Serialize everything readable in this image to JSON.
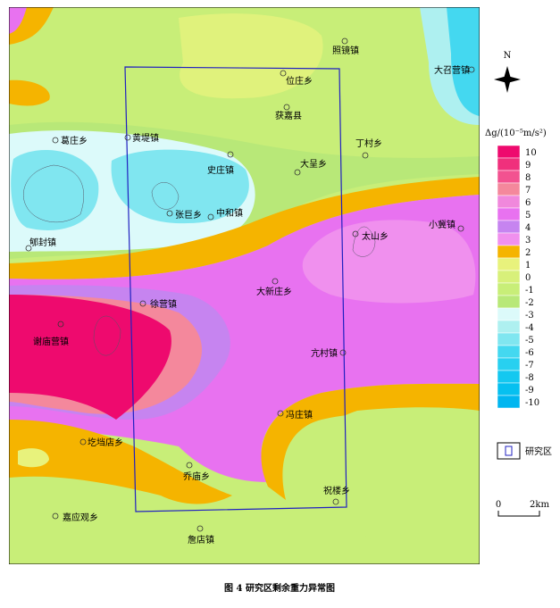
{
  "map": {
    "caption": "图 4   研究区剩余重力异常图",
    "north": "N",
    "scale": {
      "start": "0",
      "end": "2km"
    },
    "study_area": "研究区",
    "legend": {
      "title": "Δg/(10⁻⁵m/s²)",
      "items": [
        {
          "value": 10,
          "color": "#ee0a6e"
        },
        {
          "value": 9,
          "color": "#f0307c"
        },
        {
          "value": 8,
          "color": "#f25290"
        },
        {
          "value": 7,
          "color": "#f4889c"
        },
        {
          "value": 6,
          "color": "#f088dc"
        },
        {
          "value": 5,
          "color": "#e872f0"
        },
        {
          "value": 4,
          "color": "#c684f0"
        },
        {
          "value": 3,
          "color": "#f090ee"
        },
        {
          "value": 2,
          "color": "#f5b400"
        },
        {
          "value": 1,
          "color": "#e8f27c"
        },
        {
          "value": 0,
          "color": "#d8f07a"
        },
        {
          "value": -1,
          "color": "#c8ee78"
        },
        {
          "value": -2,
          "color": "#b8e878"
        },
        {
          "value": -3,
          "color": "#dcfafa"
        },
        {
          "value": -4,
          "color": "#aef0f0"
        },
        {
          "value": -5,
          "color": "#80e6f0"
        },
        {
          "value": -6,
          "color": "#44d8f0"
        },
        {
          "value": -7,
          "color": "#28d0f0"
        },
        {
          "value": -8,
          "color": "#14c8f0"
        },
        {
          "value": -9,
          "color": "#06c0f0"
        },
        {
          "value": -10,
          "color": "#00b6f0"
        }
      ]
    },
    "towns": [
      "照镜镇",
      "位庄乡",
      "获嘉县",
      "葛庄乡",
      "黄堤镇",
      "丁村乡",
      "大召营镇",
      "史庄镇",
      "大呈乡",
      "张巨乡",
      "中和镇",
      "小冀镇",
      "太山乡",
      "郇封镇",
      "大新庄乡",
      "徐营镇",
      "谢庙营镇",
      "亢村镇",
      "冯庄镇",
      "圪垱店乡",
      "乔庙乡",
      "祝楼乡",
      "嘉应观乡",
      "詹店镇"
    ]
  }
}
